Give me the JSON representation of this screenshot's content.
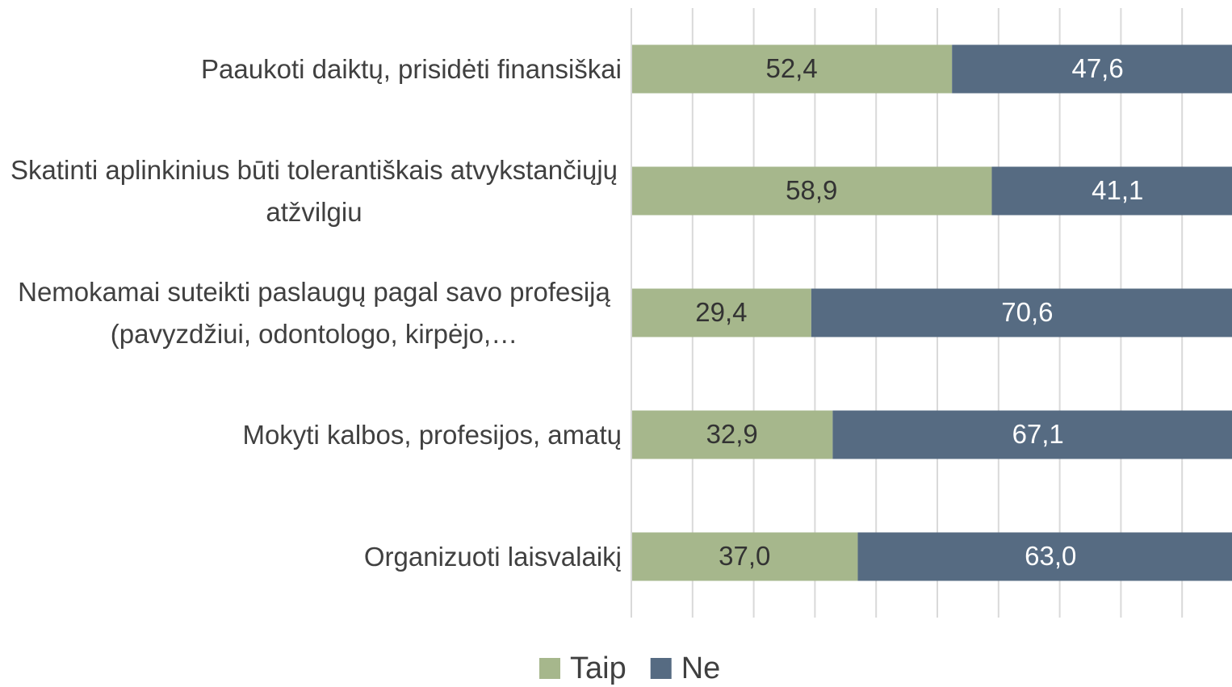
{
  "chart_data": {
    "type": "stacked-bar-horizontal",
    "categories": [
      "Paaukoti daiktų, prisidėti finansiškai",
      "Skatinti aplinkinius būti tolerantiškais atvykstančiųjų atžvilgiu",
      "Nemokamai suteikti paslaugų pagal savo profesiją (pavyzdžiui, odontologo, kirpėjo,…",
      "Mokyti kalbos, profesijos, amatų",
      "Organizuoti laisvalaikį"
    ],
    "series": [
      {
        "name": "Taip",
        "color": "#a6b78c",
        "values": [
          52.4,
          58.9,
          29.4,
          32.9,
          37.0
        ],
        "value_labels": [
          "52,4",
          "58,9",
          "29,4",
          "32,9",
          "37,0"
        ]
      },
      {
        "name": "Ne",
        "color": "#566b82",
        "values": [
          47.6,
          41.1,
          70.6,
          67.1,
          63.0
        ],
        "value_labels": [
          "47,6",
          "41,1",
          "70,6",
          "67,1",
          "63,0"
        ]
      }
    ],
    "xlim": [
      0,
      100
    ],
    "xticks": [
      0,
      10,
      20,
      30,
      40,
      50,
      60,
      70,
      80,
      90,
      100
    ],
    "grid": true,
    "legend": "bottom"
  }
}
